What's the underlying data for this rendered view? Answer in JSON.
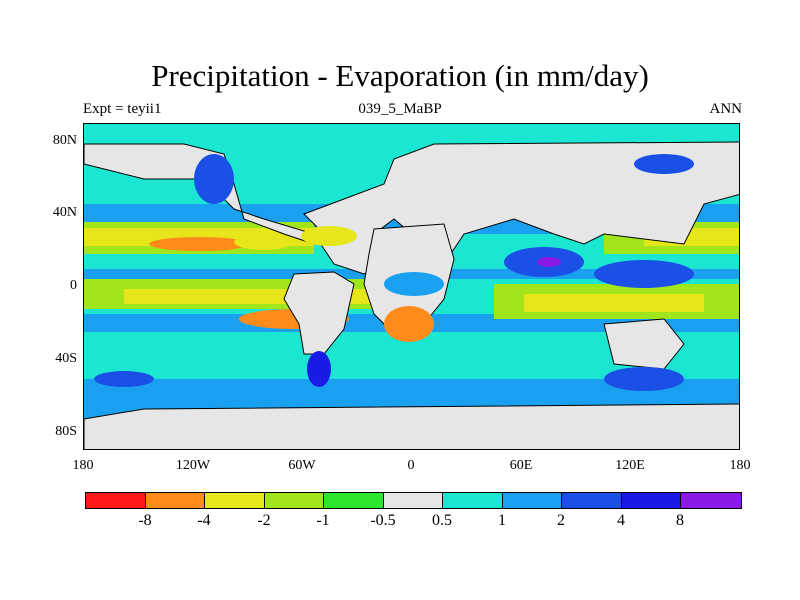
{
  "title": "Precipitation - Evaporation (in mm/day)",
  "subtitle_left": "Expt = teyii1",
  "subtitle_center": "039_5_MaBP",
  "subtitle_right": "ANN",
  "lat_labels": [
    "80N",
    "40N",
    "0",
    "40S",
    "80S"
  ],
  "lon_labels": [
    "180",
    "120W",
    "60W",
    "0",
    "60E",
    "120E",
    "180"
  ],
  "colorbar": {
    "colors": [
      "#ff1a1a",
      "#ff8c1a",
      "#e6e61a",
      "#a0e61a",
      "#2ee62e",
      "#e6e6e6",
      "#1ae6d2",
      "#1aa0f0",
      "#1a50e6",
      "#1a1ae6",
      "#8c1ae6"
    ],
    "labels": [
      "-8",
      "-4",
      "-2",
      "-1",
      "-0.5",
      "0.5",
      "1",
      "2",
      "4",
      "8"
    ]
  },
  "map_data": {
    "variable": "Precipitation - Evaporation",
    "units": "mm/day",
    "lon_range": [
      -180,
      180
    ],
    "lat_range": [
      -90,
      90
    ],
    "levels": [
      -8,
      -4,
      -2,
      -1,
      -0.5,
      0.5,
      1,
      2,
      4,
      8
    ]
  }
}
